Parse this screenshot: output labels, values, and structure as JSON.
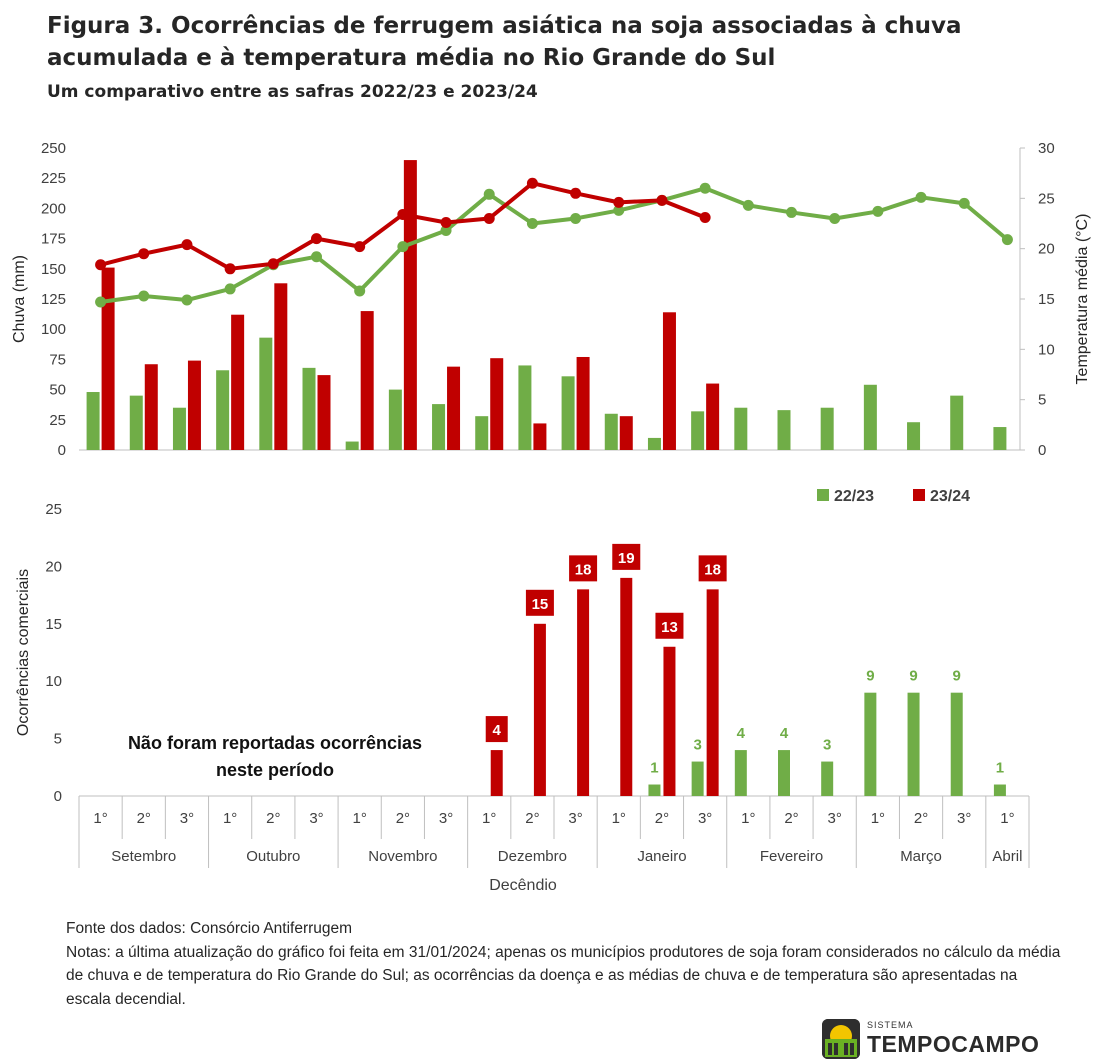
{
  "header": {
    "title": "Figura 3. Ocorrências de ferrugem asiática na soja associadas à chuva acumulada e à temperatura média no Rio Grande do Sul",
    "subtitle": "Um comparativo entre as safras 2022/23 e 2023/24"
  },
  "colors": {
    "s2223": "#70ad47",
    "s2324": "#c00000",
    "axis": "#bfbfbf",
    "text": "#595959"
  },
  "chart_data": [
    {
      "type": "bar+line",
      "ylabel_left": "Chuva (mm)",
      "ylabel_right": "Temperatura média (°C)",
      "ylim_left": [
        0,
        250
      ],
      "yticks_left": [
        "0",
        "25",
        "50",
        "75",
        "100",
        "125",
        "150",
        "175",
        "200",
        "225",
        "250"
      ],
      "ylim_right": [
        0,
        30
      ],
      "yticks_right": [
        "0",
        "5",
        "10",
        "15",
        "20",
        "25",
        "30"
      ],
      "series": [
        {
          "name": "22/23",
          "kind": "bar",
          "axis": "left",
          "values": [
            48,
            45,
            35,
            66,
            93,
            68,
            7,
            50,
            38,
            28,
            70,
            61,
            30,
            10,
            32,
            35,
            33,
            35,
            54,
            23,
            45,
            19
          ]
        },
        {
          "name": "23/24",
          "kind": "bar",
          "axis": "left",
          "values": [
            151,
            71,
            74,
            112,
            138,
            62,
            115,
            240,
            69,
            76,
            22,
            77,
            28,
            114,
            55,
            null,
            null,
            null,
            null,
            null,
            null,
            null
          ]
        },
        {
          "name": "22/23",
          "kind": "line",
          "axis": "right",
          "values": [
            14.7,
            15.3,
            14.9,
            16.0,
            18.4,
            19.2,
            15.8,
            20.2,
            21.8,
            25.4,
            22.5,
            23.0,
            23.8,
            24.8,
            26.0,
            24.3,
            23.6,
            23.0,
            23.7,
            25.1,
            24.5,
            20.9
          ]
        },
        {
          "name": "23/24",
          "kind": "line",
          "axis": "right",
          "values": [
            18.4,
            19.5,
            20.4,
            18.0,
            18.5,
            21.0,
            20.2,
            23.4,
            22.6,
            23.0,
            26.5,
            25.5,
            24.6,
            24.8,
            23.1,
            null,
            null,
            null,
            null,
            null,
            null,
            null
          ]
        }
      ]
    },
    {
      "type": "bar",
      "ylabel": "Ocorrências comerciais",
      "xlabel": "Decêndio",
      "ylim": [
        0,
        25
      ],
      "yticks": [
        "0",
        "5",
        "10",
        "15",
        "20",
        "25"
      ],
      "annotation": "Não foram reportadas ocorrências neste período",
      "series": [
        {
          "name": "22/23",
          "values": [
            null,
            null,
            null,
            null,
            null,
            null,
            null,
            null,
            null,
            null,
            null,
            null,
            null,
            1,
            3,
            4,
            4,
            3,
            9,
            9,
            9,
            1
          ],
          "labels": [
            "",
            "",
            "",
            "",
            "",
            "",
            "",
            "",
            "",
            "",
            "",
            "",
            "",
            "1",
            "3",
            "4",
            "4",
            "3",
            "9",
            "9",
            "9",
            "1"
          ]
        },
        {
          "name": "23/24",
          "values": [
            null,
            null,
            null,
            null,
            null,
            null,
            null,
            null,
            null,
            4,
            15,
            18,
            19,
            13,
            18,
            null,
            null,
            null,
            null,
            null,
            null,
            null
          ],
          "labels": [
            "",
            "",
            "",
            "",
            "",
            "",
            "",
            "",
            "",
            "4",
            "15",
            "18",
            "19",
            "13",
            "18",
            "",
            "",
            "",
            "",
            "",
            "",
            ""
          ]
        }
      ],
      "legend": [
        {
          "name": "22/23"
        },
        {
          "name": "23/24"
        }
      ],
      "categories": [
        "1°",
        "2°",
        "3°",
        "1°",
        "2°",
        "3°",
        "1°",
        "2°",
        "3°",
        "1°",
        "2°",
        "3°",
        "1°",
        "2°",
        "3°",
        "1°",
        "2°",
        "3°",
        "1°",
        "2°",
        "3°",
        "1°"
      ],
      "months": [
        "Setembro",
        "Outubro",
        "Novembro",
        "Dezembro",
        "Janeiro",
        "Fevereiro",
        "Março",
        "Abril"
      ]
    }
  ],
  "notes": {
    "source": "Fonte dos dados: Consórcio Antiferrugem",
    "text": "Notas: a última atualização do gráfico foi feita em 31/01/2024;  apenas os municípios produtores de soja foram considerados no cálculo da média de chuva e de temperatura do Rio Grande do Sul; as ocorrências da doença e as médias de chuva e de temperatura são apresentadas na escala decendial."
  },
  "logo": {
    "small": "SISTEMA",
    "brand": "TEMPOCAMPO"
  }
}
